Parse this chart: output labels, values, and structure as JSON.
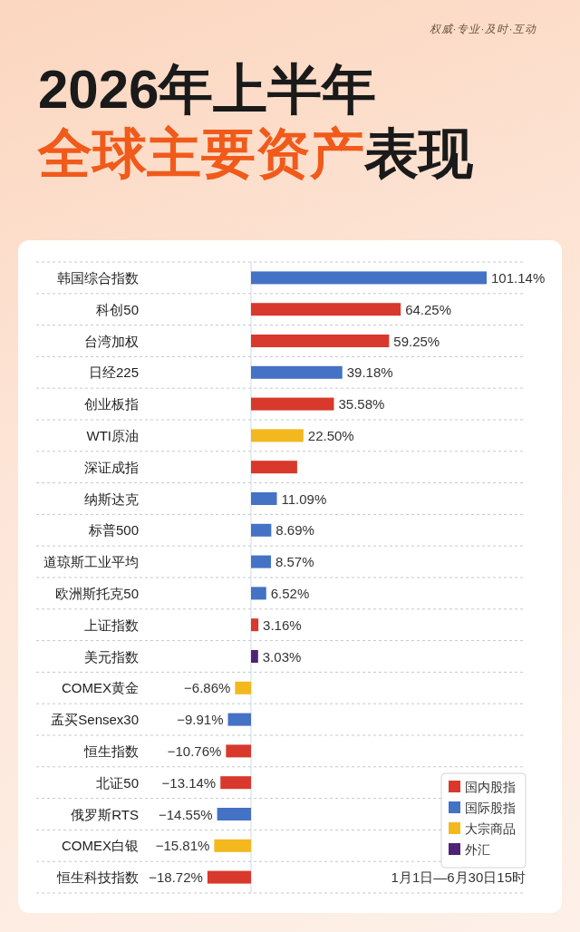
{
  "chart_data": {
    "type": "bar",
    "orientation": "horizontal",
    "stacked": true,
    "title": "2026年上半年",
    "subtitle": "全球主要资产表现",
    "categories": [
      "韩国综合指数",
      "科创50",
      "台湾加权",
      "日经225",
      "创业板指",
      "WTI原油",
      "深证成指",
      "纳斯达克",
      "标普500",
      "道琼斯工业平均",
      "欧洲斯托克50",
      "上证指数",
      "美元指数",
      "COMEX黄金",
      "孟买Sensex30",
      "恒生指数",
      "北证50",
      "俄罗斯RTS",
      "COMEX白银",
      "恒生科技指数"
    ],
    "series": [
      {
        "name": "国内股指",
        "color": "#d9382c",
        "values": [
          null,
          64.25,
          59.25,
          null,
          35.58,
          null,
          19.8,
          null,
          null,
          null,
          null,
          3.16,
          null,
          null,
          null,
          -10.76,
          -13.14,
          null,
          null,
          -18.72
        ],
        "value_labels": [
          null,
          "64.25%",
          "59.25%",
          null,
          "35.58%",
          null,
          null,
          null,
          null,
          null,
          null,
          "3.16%",
          null,
          null,
          null,
          "−10.76%",
          "−13.14%",
          null,
          null,
          "−18.72%"
        ]
      },
      {
        "name": "国际股指",
        "color": "#4472c4",
        "values": [
          101.14,
          null,
          null,
          39.18,
          null,
          null,
          null,
          11.09,
          8.69,
          8.57,
          6.52,
          null,
          null,
          null,
          -9.91,
          null,
          null,
          -14.55,
          null,
          null
        ],
        "value_labels": [
          "101.14%",
          null,
          null,
          "39.18%",
          null,
          null,
          null,
          "11.09%",
          "8.69%",
          "8.57%",
          "6.52%",
          null,
          null,
          null,
          "−9.91%",
          null,
          null,
          "−14.55%",
          null,
          null
        ]
      },
      {
        "name": "大宗商品",
        "color": "#f2b81e",
        "values": [
          null,
          null,
          null,
          null,
          null,
          22.5,
          null,
          null,
          null,
          null,
          null,
          null,
          null,
          -6.86,
          null,
          null,
          null,
          null,
          -15.81,
          null
        ],
        "value_labels": [
          null,
          null,
          null,
          null,
          null,
          "22.50%",
          null,
          null,
          null,
          null,
          null,
          null,
          null,
          "−6.86%",
          null,
          null,
          null,
          null,
          "−15.81%",
          null
        ]
      },
      {
        "name": "外汇",
        "color": "#4e2377",
        "values": [
          null,
          null,
          null,
          null,
          null,
          null,
          null,
          null,
          null,
          null,
          null,
          null,
          3.03,
          null,
          null,
          null,
          null,
          null,
          null,
          null
        ],
        "value_labels": [
          null,
          null,
          null,
          null,
          null,
          null,
          null,
          null,
          null,
          null,
          null,
          null,
          "3.03%",
          null,
          null,
          null,
          null,
          null,
          null,
          null
        ]
      }
    ],
    "legend": "bottom right",
    "grid": "y",
    "tick_labels": "y",
    "annotations": [
      "权威·专业·及时·互动",
      "1月1日—6月30日15时"
    ]
  }
}
